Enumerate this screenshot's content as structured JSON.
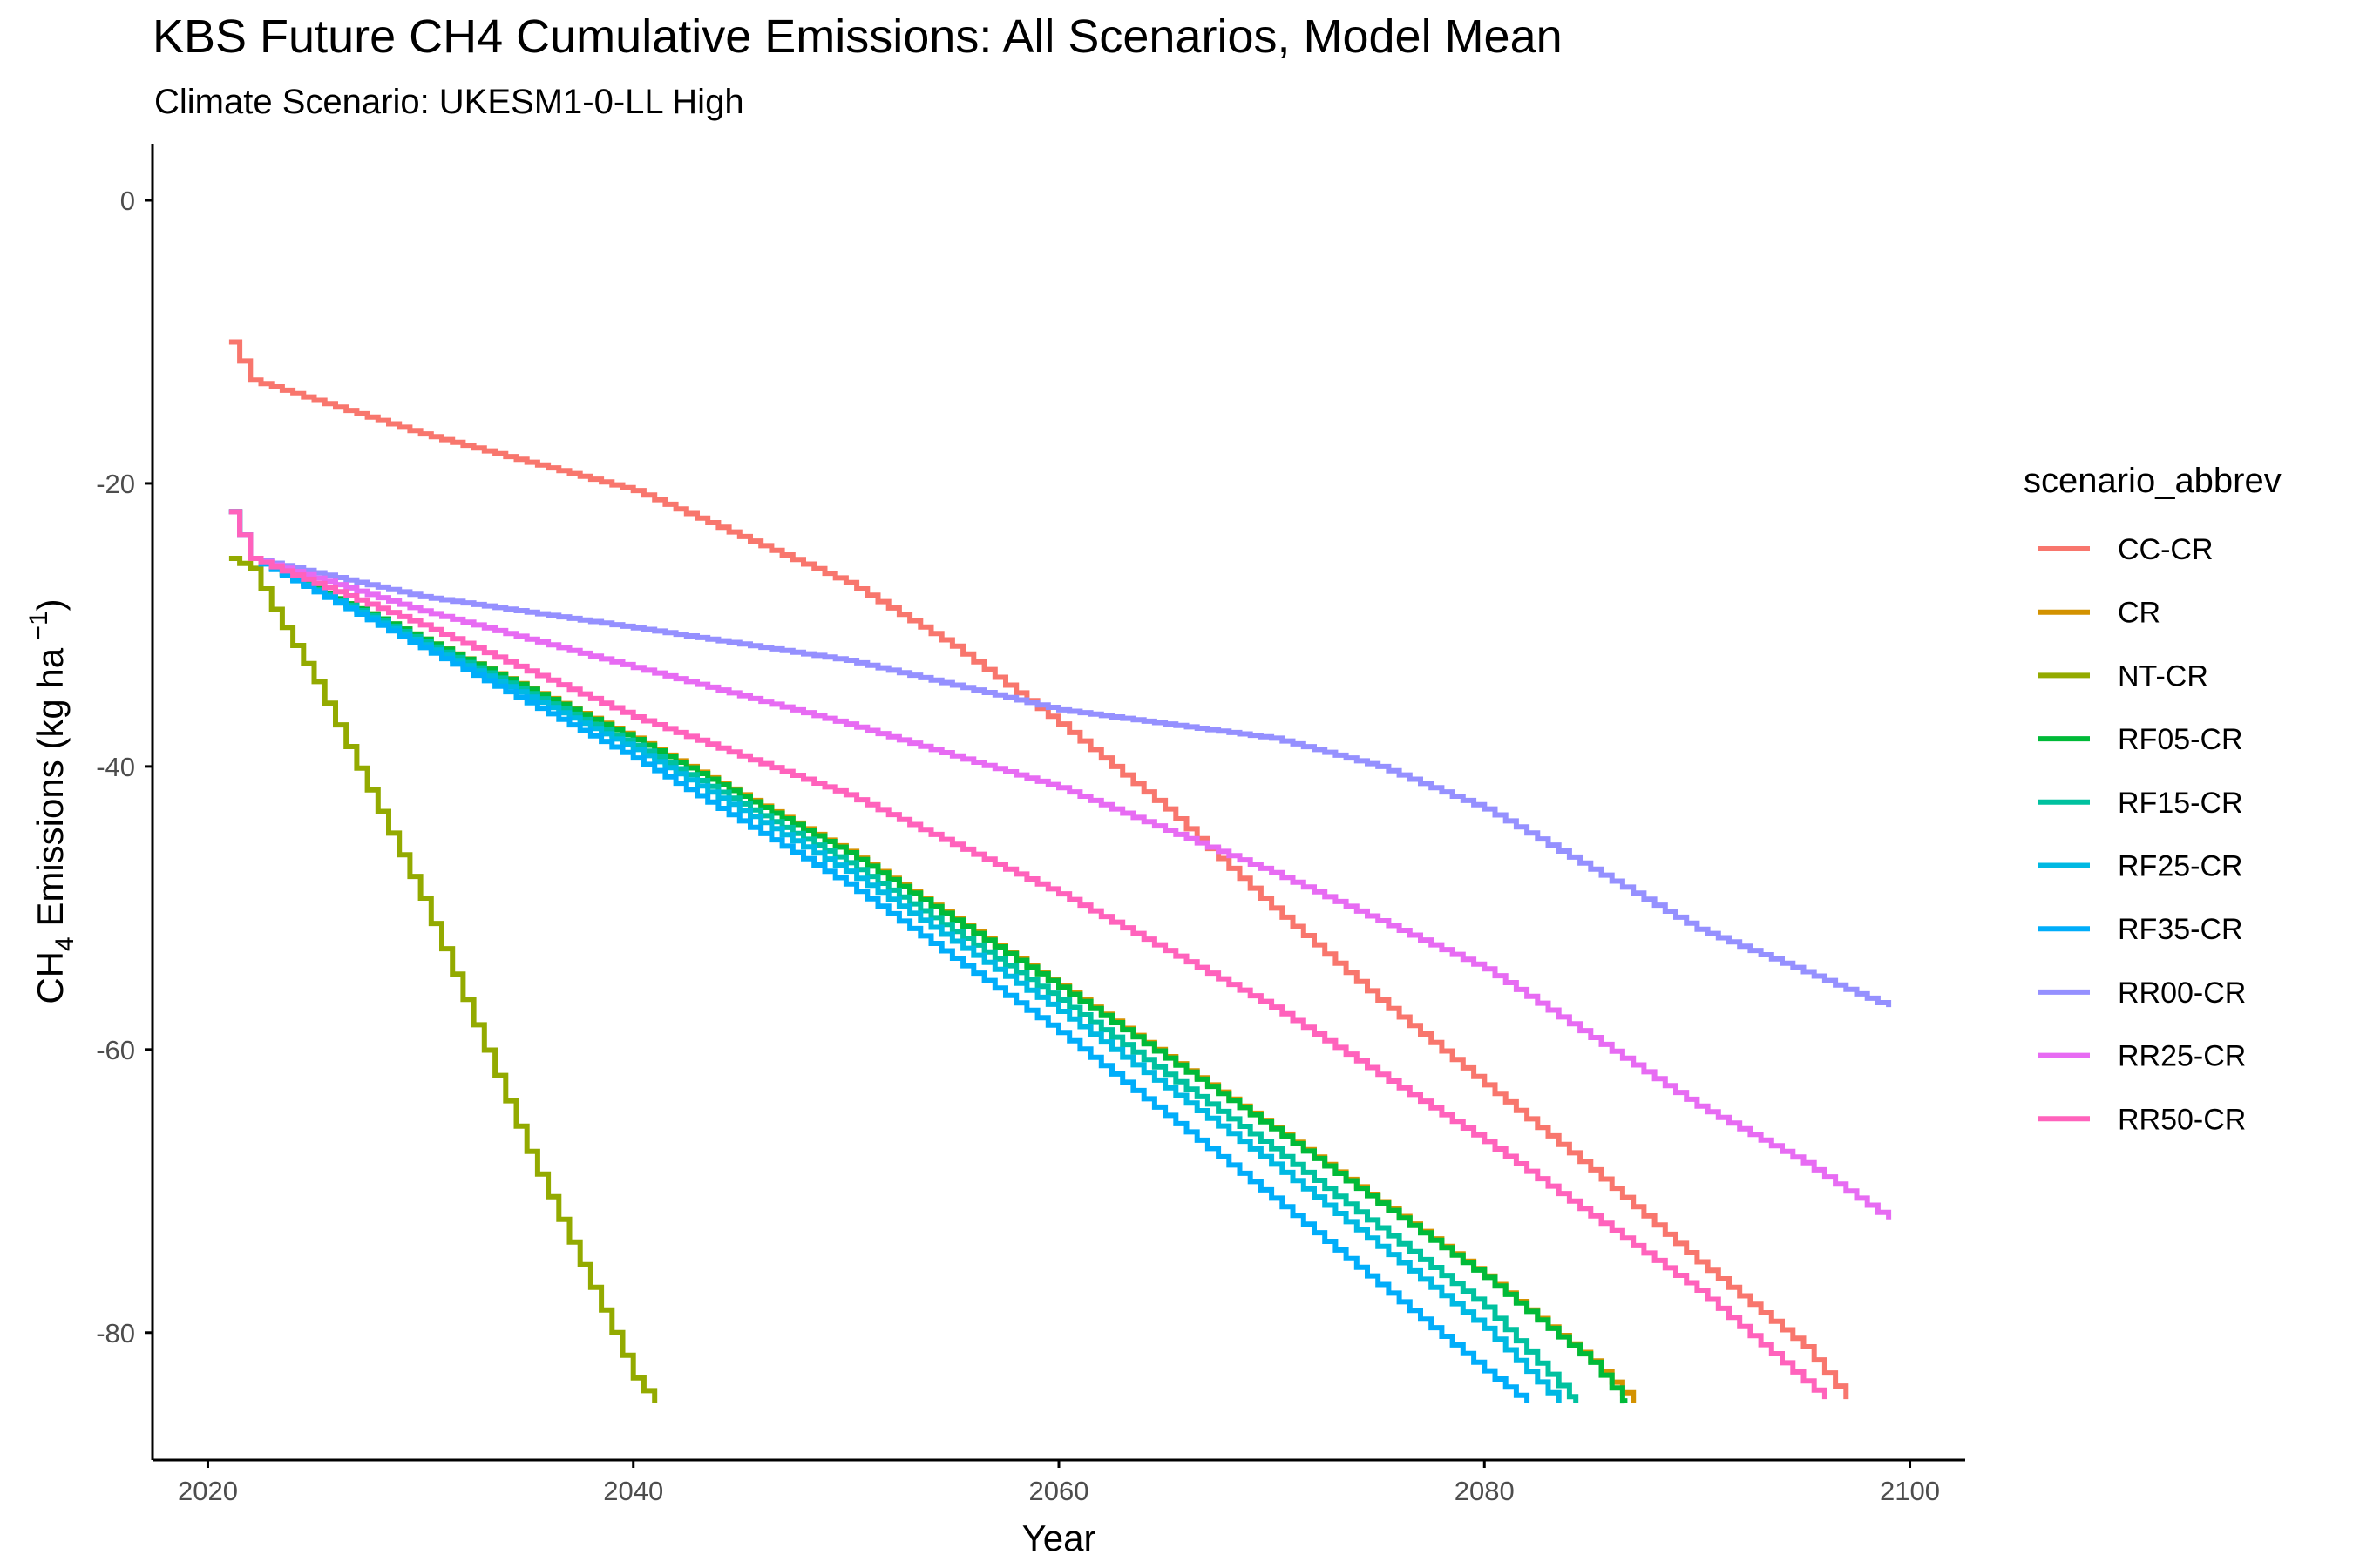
{
  "chart_data": {
    "type": "line",
    "step": true,
    "title": "KBS  Future CH4 Cumulative Emissions: All Scenarios, Model Mean",
    "subtitle": "Climate Scenario: UKESM1-0-LL High",
    "xlabel": "Year",
    "ylabel_main": "CH",
    "ylabel_sub": "4",
    "ylabel_mid": " Emissions (kg ha",
    "ylabel_sup": " −1",
    "ylabel_end": ")",
    "xlim": [
      2017.4,
      2102.6
    ],
    "ylim": [
      -89,
      4
    ],
    "x_ticks": [
      2020,
      2040,
      2060,
      2080,
      2100
    ],
    "x_tick_labels": [
      "2020",
      "2040",
      "2060",
      "2080",
      "2100"
    ],
    "y_ticks": [
      0,
      -20,
      -40,
      -60,
      -80
    ],
    "y_tick_labels": [
      "0",
      "-20",
      "-40",
      "-60",
      "-80"
    ],
    "grid": false,
    "legend_title": "scenario_abbrev",
    "legend_position": "right",
    "series": [
      {
        "name": "CC-CR",
        "color": "#F8766D",
        "anchors": [
          [
            2021,
            -10
          ],
          [
            2022,
            -12.7
          ],
          [
            2030,
            -16.5
          ],
          [
            2040,
            -20.5
          ],
          [
            2050,
            -27
          ],
          [
            2055,
            -31.5
          ],
          [
            2060,
            -37
          ],
          [
            2065,
            -43
          ],
          [
            2070,
            -50
          ],
          [
            2075,
            -56.5
          ],
          [
            2080,
            -62.5
          ],
          [
            2085,
            -68.5
          ],
          [
            2090,
            -75
          ],
          [
            2095,
            -81
          ],
          [
            2097,
            -84.7
          ]
        ]
      },
      {
        "name": "CR",
        "color": "#D39200",
        "anchors": [
          [
            2021,
            -22
          ],
          [
            2022,
            -25.3
          ],
          [
            2030,
            -31
          ],
          [
            2040,
            -38
          ],
          [
            2050,
            -46
          ],
          [
            2060,
            -55.5
          ],
          [
            2070,
            -65.5
          ],
          [
            2080,
            -76
          ],
          [
            2085,
            -82
          ],
          [
            2087,
            -85
          ]
        ]
      },
      {
        "name": "NT-CR",
        "color": "#93AA00",
        "anchors": [
          [
            2021,
            -25.3
          ],
          [
            2022,
            -26
          ],
          [
            2023,
            -28.9
          ],
          [
            2025,
            -34
          ],
          [
            2030,
            -49.3
          ],
          [
            2035,
            -67.2
          ],
          [
            2040,
            -83.2
          ],
          [
            2041,
            -85
          ]
        ]
      },
      {
        "name": "RF05-CR",
        "color": "#00BA38",
        "anchors": [
          [
            2021,
            -22
          ],
          [
            2022,
            -25.3
          ],
          [
            2030,
            -31
          ],
          [
            2040,
            -38.1
          ],
          [
            2050,
            -46.1
          ],
          [
            2060,
            -55.6
          ],
          [
            2070,
            -65.6
          ],
          [
            2080,
            -76.1
          ],
          [
            2085,
            -82.1
          ],
          [
            2086.6,
            -85
          ]
        ]
      },
      {
        "name": "RF15-CR",
        "color": "#00C19F",
        "anchors": [
          [
            2021,
            -22
          ],
          [
            2022,
            -25.3
          ],
          [
            2030,
            -31.2
          ],
          [
            2040,
            -38.5
          ],
          [
            2050,
            -46.8
          ],
          [
            2060,
            -56.5
          ],
          [
            2070,
            -67
          ],
          [
            2080,
            -78.2
          ],
          [
            2084.3,
            -85
          ]
        ]
      },
      {
        "name": "RF25-CR",
        "color": "#00B9E3",
        "anchors": [
          [
            2021,
            -22
          ],
          [
            2022,
            -25.3
          ],
          [
            2030,
            -31.4
          ],
          [
            2040,
            -38.8
          ],
          [
            2050,
            -47.4
          ],
          [
            2060,
            -57.3
          ],
          [
            2070,
            -68.1
          ],
          [
            2080,
            -79.7
          ],
          [
            2083.5,
            -85
          ]
        ]
      },
      {
        "name": "RF35-CR",
        "color": "#00ADFA",
        "anchors": [
          [
            2021,
            -22
          ],
          [
            2022,
            -25.3
          ],
          [
            2030,
            -31.6
          ],
          [
            2040,
            -39.4
          ],
          [
            2050,
            -48.3
          ],
          [
            2060,
            -58.8
          ],
          [
            2070,
            -70.5
          ],
          [
            2080,
            -82.7
          ],
          [
            2082,
            -85
          ]
        ]
      },
      {
        "name": "RR00-CR",
        "color": "#9590FF",
        "anchors": [
          [
            2021,
            -22
          ],
          [
            2022,
            -25.3
          ],
          [
            2030,
            -28
          ],
          [
            2040,
            -30.2
          ],
          [
            2050,
            -32.5
          ],
          [
            2060,
            -36
          ],
          [
            2070,
            -38
          ],
          [
            2075,
            -40
          ],
          [
            2080,
            -43
          ],
          [
            2090,
            -51.5
          ],
          [
            2095,
            -54.5
          ],
          [
            2099,
            -57
          ]
        ]
      },
      {
        "name": "RR25-CR",
        "color": "#E76BF3",
        "anchors": [
          [
            2021,
            -22
          ],
          [
            2022,
            -25.3
          ],
          [
            2030,
            -29
          ],
          [
            2040,
            -33
          ],
          [
            2050,
            -37
          ],
          [
            2060,
            -41.5
          ],
          [
            2070,
            -47.5
          ],
          [
            2080,
            -54.3
          ],
          [
            2090,
            -64
          ],
          [
            2095,
            -68
          ],
          [
            2099,
            -72
          ]
        ]
      },
      {
        "name": "RR50-CR",
        "color": "#FF62BC",
        "anchors": [
          [
            2021,
            -22
          ],
          [
            2022,
            -25.3
          ],
          [
            2030,
            -30
          ],
          [
            2040,
            -36.5
          ],
          [
            2050,
            -42
          ],
          [
            2060,
            -49
          ],
          [
            2070,
            -57
          ],
          [
            2080,
            -66.5
          ],
          [
            2090,
            -77
          ],
          [
            2096,
            -84.7
          ]
        ]
      }
    ]
  }
}
